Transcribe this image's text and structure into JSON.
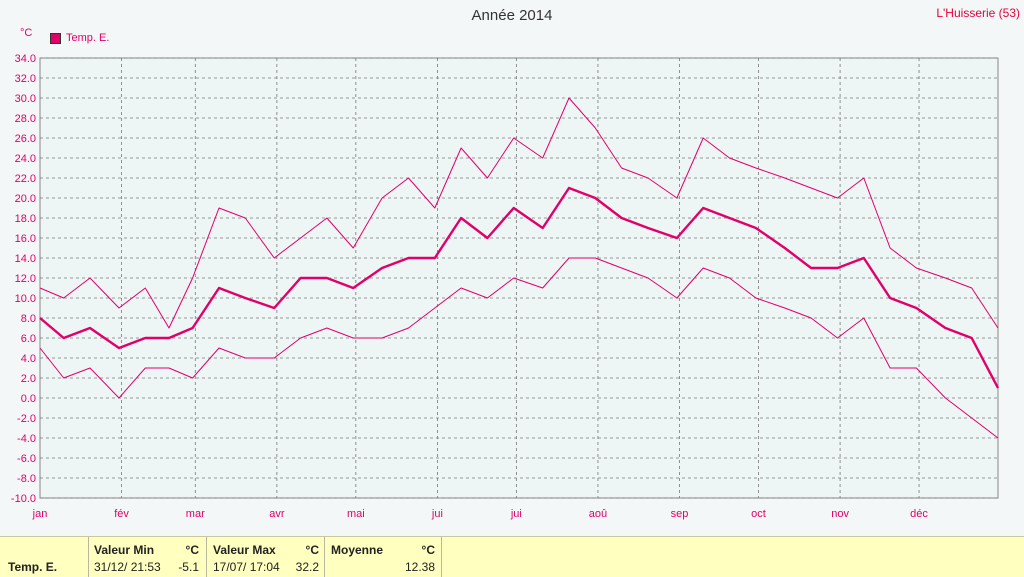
{
  "header": {
    "title": "Année 2014",
    "station": "L'Huisserie (53)",
    "unit": "°C"
  },
  "legend": {
    "label": "Temp. E.",
    "color": "#e0006a"
  },
  "chart_data": {
    "type": "line",
    "title": "Année 2014",
    "ylabel": "°C",
    "ylim": [
      -10,
      34
    ],
    "yticks": [
      "34.0",
      "32.0",
      "30.0",
      "28.0",
      "26.0",
      "24.0",
      "22.0",
      "20.0",
      "18.0",
      "16.0",
      "14.0",
      "12.0",
      "10.0",
      "8.0",
      "6.0",
      "4.0",
      "2.0",
      "0.0",
      "-2.0",
      "-4.0",
      "-6.0",
      "-8.0",
      "-10.0"
    ],
    "months": [
      "jan",
      "fév",
      "mar",
      "avr",
      "mai",
      "jui",
      "jui",
      "aoû",
      "sep",
      "oct",
      "nov",
      "déc"
    ],
    "grid": true,
    "legend_position": "top-left",
    "x_unit": "day of year",
    "series": [
      {
        "name": "Temp. E.",
        "role": "max",
        "color": "#e0006a",
        "x": [
          1,
          10,
          20,
          31,
          41,
          50,
          59,
          69,
          79,
          90,
          100,
          110,
          120,
          131,
          141,
          151,
          161,
          171,
          181,
          192,
          202,
          212,
          222,
          232,
          243,
          253,
          263,
          273,
          284,
          294,
          304,
          314,
          324,
          334,
          345,
          355,
          365
        ],
        "values": [
          11,
          10,
          12,
          9,
          11,
          7,
          12,
          19,
          18,
          14,
          16,
          18,
          15,
          20,
          22,
          19,
          25,
          22,
          26,
          24,
          30,
          27,
          23,
          22,
          20,
          26,
          24,
          23,
          22,
          21,
          20,
          22,
          15,
          13,
          12,
          11,
          7
        ]
      },
      {
        "name": "Temp. E.",
        "role": "mean",
        "color": "#e0006a",
        "x": [
          1,
          10,
          20,
          31,
          41,
          50,
          59,
          69,
          79,
          90,
          100,
          110,
          120,
          131,
          141,
          151,
          161,
          171,
          181,
          192,
          202,
          212,
          222,
          232,
          243,
          253,
          263,
          273,
          284,
          294,
          304,
          314,
          324,
          334,
          345,
          355,
          365
        ],
        "values": [
          8,
          6,
          7,
          5,
          6,
          6,
          7,
          11,
          10,
          9,
          12,
          12,
          11,
          13,
          14,
          14,
          18,
          16,
          19,
          17,
          21,
          20,
          18,
          17,
          16,
          19,
          18,
          17,
          15,
          13,
          13,
          14,
          10,
          9,
          7,
          6,
          1
        ]
      },
      {
        "name": "Temp. E.",
        "role": "min",
        "color": "#e0006a",
        "x": [
          1,
          10,
          20,
          31,
          41,
          50,
          59,
          69,
          79,
          90,
          100,
          110,
          120,
          131,
          141,
          151,
          161,
          171,
          181,
          192,
          202,
          212,
          222,
          232,
          243,
          253,
          263,
          273,
          284,
          294,
          304,
          314,
          324,
          334,
          345,
          355,
          365
        ],
        "values": [
          5,
          2,
          3,
          0,
          3,
          3,
          2,
          5,
          4,
          4,
          6,
          7,
          6,
          6,
          7,
          9,
          11,
          10,
          12,
          11,
          14,
          14,
          13,
          12,
          10,
          13,
          12,
          10,
          9,
          8,
          6,
          8,
          3,
          3,
          0,
          -2,
          -4
        ]
      }
    ]
  },
  "stats": {
    "name": "Temp. E.",
    "min": {
      "header": "Valeur Min",
      "unit": "°C",
      "date": "31/12/  21:53",
      "value": "-5.1"
    },
    "max": {
      "header": "Valeur Max",
      "unit": "°C",
      "date": "17/07/  17:04",
      "value": "32.2"
    },
    "avg": {
      "header": "Moyenne",
      "unit": "°C",
      "value": "12.38"
    }
  }
}
